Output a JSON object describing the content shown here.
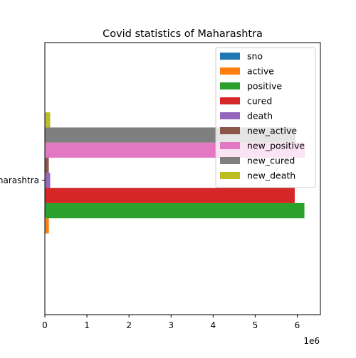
{
  "chart_data": {
    "type": "bar",
    "orientation": "horizontal",
    "title": "Covid statistics of Maharashtra",
    "categories": [
      "Maharashtra"
    ],
    "xlabel": "",
    "ylabel": "",
    "x_scale_label": "1e6",
    "x_ticks": [
      0,
      1,
      2,
      3,
      4,
      5,
      6
    ],
    "xlim": [
      0,
      6.55
    ],
    "x_unit_multiplier": 1000000,
    "grid": false,
    "legend_position": "top-right",
    "series": [
      {
        "name": "sno",
        "values": [
          2e-05
        ],
        "color": "#1f77b4"
      },
      {
        "name": "active",
        "values": [
          0.096
        ],
        "color": "#ff7f0e"
      },
      {
        "name": "positive",
        "values": [
          6.17
        ],
        "color": "#2ca02c"
      },
      {
        "name": "cured",
        "values": [
          5.94
        ],
        "color": "#d62728"
      },
      {
        "name": "death",
        "values": [
          0.126
        ],
        "color": "#9467bd"
      },
      {
        "name": "new_active",
        "values": [
          0.094
        ],
        "color": "#8c564b"
      },
      {
        "name": "new_positive",
        "values": [
          6.18
        ],
        "color": "#e377c2"
      },
      {
        "name": "new_cured",
        "values": [
          5.96
        ],
        "color": "#7f7f7f"
      },
      {
        "name": "new_death",
        "values": [
          0.126
        ],
        "color": "#bcbd22"
      }
    ]
  }
}
